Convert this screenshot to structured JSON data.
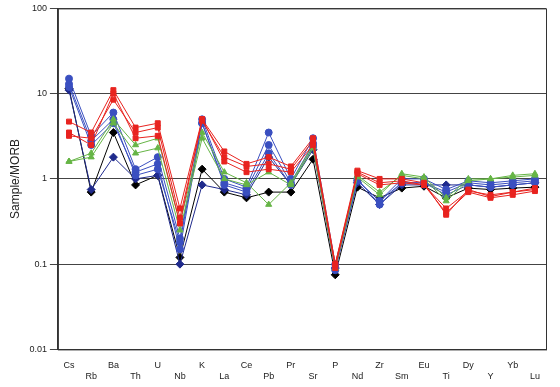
{
  "chart_data": {
    "type": "line",
    "y_label": "Sample/MORB",
    "categories": [
      "Cs",
      "Rb",
      "Ba",
      "Th",
      "U",
      "Nb",
      "K",
      "La",
      "Ce",
      "Pb",
      "Pr",
      "Sr",
      "P",
      "Nd",
      "Zr",
      "Sm",
      "Eu",
      "Ti",
      "Dy",
      "Y",
      "Yb",
      "Lu"
    ],
    "log": "y",
    "ylim": [
      0.01,
      100
    ],
    "yticks": [
      0.01,
      0.1,
      1,
      10,
      100
    ],
    "grid": true,
    "series": [
      {
        "color": "#e8231f",
        "marker": "square",
        "values": [
          4.7,
          3.5,
          11,
          4,
          4.5,
          0.45,
          5,
          2.1,
          1.5,
          1.8,
          1.4,
          3,
          0.1,
          1.25,
          1,
          1,
          0.9,
          0.38,
          0.75,
          0.62,
          0.7,
          0.78
        ]
      },
      {
        "color": "#e8231f",
        "marker": "square",
        "values": [
          3.2,
          3,
          8.5,
          3.5,
          4,
          0.35,
          4.8,
          1.8,
          1.4,
          1.5,
          1.3,
          2.8,
          0.09,
          1.2,
          0.9,
          0.95,
          0.85,
          0.4,
          0.7,
          0.6,
          0.65,
          0.72
        ]
      },
      {
        "color": "#e8231f",
        "marker": "square",
        "values": [
          3.5,
          2.5,
          10,
          3,
          3.2,
          0.3,
          5,
          1.6,
          1.2,
          1.3,
          1.2,
          2.5,
          0.1,
          1.15,
          0.85,
          0.9,
          0.85,
          0.45,
          0.72,
          0.65,
          0.7,
          0.75
        ]
      },
      {
        "color": "#66b546",
        "marker": "triangle",
        "values": [
          1.6,
          2,
          5,
          2.5,
          3,
          0.3,
          3.5,
          1.2,
          0.9,
          0.5,
          0.9,
          2.5,
          0.09,
          1.1,
          0.7,
          1.1,
          1,
          0.55,
          0.95,
          1,
          1.1,
          1.15
        ]
      },
      {
        "color": "#66b546",
        "marker": "triangle",
        "values": [
          1.6,
          1.8,
          4.5,
          2,
          2.3,
          0.25,
          3,
          1,
          0.85,
          1.2,
          0.85,
          2.3,
          0.09,
          1.05,
          0.65,
          1.15,
          1.05,
          0.6,
          1,
          1,
          1.05,
          1.1
        ]
      },
      {
        "color": "#3a4fc0",
        "marker": "circle",
        "values": [
          15,
          3.2,
          6,
          1.3,
          1.8,
          0.2,
          5,
          1,
          0.8,
          3.5,
          1,
          3,
          0.1,
          1,
          0.5,
          0.9,
          0.9,
          0.7,
          0.9,
          0.85,
          0.9,
          0.95
        ]
      },
      {
        "color": "#3a4fc0",
        "marker": "circle",
        "values": [
          12,
          2.5,
          4.5,
          1.2,
          1.5,
          0.15,
          4.5,
          0.9,
          0.75,
          2.5,
          0.9,
          2.6,
          0.09,
          0.95,
          0.55,
          1,
          1,
          0.75,
          0.95,
          0.9,
          0.95,
          1
        ]
      },
      {
        "color": "#3a4fc0",
        "marker": "circle",
        "values": [
          13,
          2.8,
          5,
          1.1,
          1.3,
          0.18,
          4.5,
          0.85,
          0.7,
          2,
          0.85,
          2.4,
          0.085,
          0.95,
          0.55,
          0.9,
          0.9,
          0.65,
          0.85,
          0.8,
          0.85,
          0.9
        ]
      },
      {
        "color": "#1f2a8c",
        "marker": "diamond",
        "values": [
          11,
          0.75,
          1.8,
          1,
          1.1,
          0.1,
          0.85,
          0.75,
          0.65,
          1.8,
          0.85,
          2.2,
          0.09,
          0.9,
          0.5,
          0.85,
          0.85,
          0.85,
          0.85,
          0.8,
          0.85,
          0.9
        ]
      },
      {
        "color": "#000000",
        "marker": "diamond",
        "values": [
          11.5,
          0.7,
          3.5,
          0.85,
          1.1,
          0.12,
          1.3,
          0.7,
          0.6,
          0.7,
          0.7,
          1.7,
          0.075,
          0.8,
          0.6,
          0.78,
          0.82,
          0.6,
          0.78,
          0.75,
          0.78,
          0.8
        ]
      }
    ]
  }
}
